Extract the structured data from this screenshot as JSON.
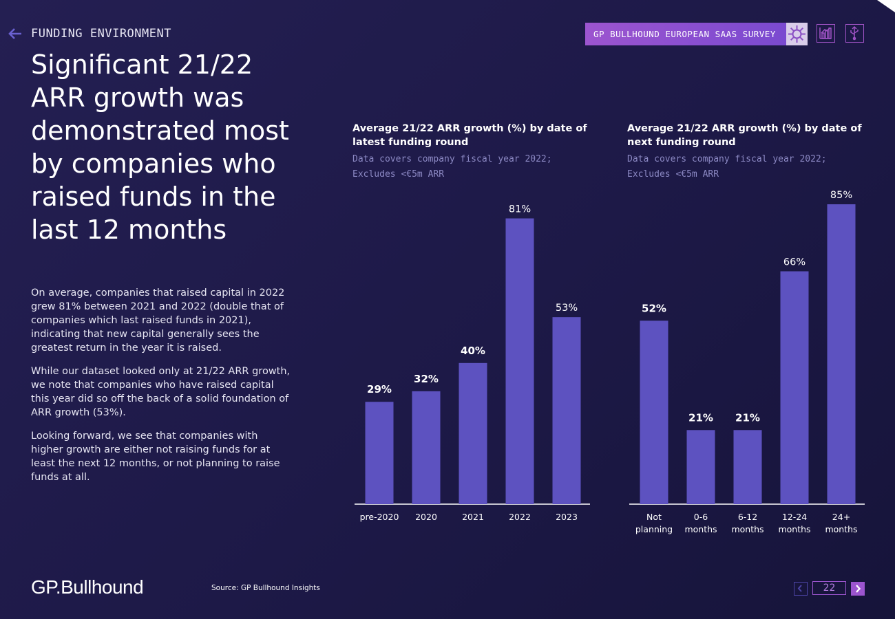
{
  "header": {
    "section": "FUNDING ENVIRONMENT",
    "survey_label": "GP BULLHOUND EUROPEAN SAAS SURVEY",
    "survey_icon": "virus-icon",
    "tool_icons": [
      "bar-chart-icon",
      "usb-icon"
    ]
  },
  "headline": "Significant 21/22 ARR growth was demonstrated most by companies who raised funds in the last 12 months",
  "body": [
    "On average, companies that raised capital in 2022 grew 81% between 2021 and 2022 (double that of companies which last raised funds in 2021), indicating that new capital generally sees the greatest return in the year it is raised.",
    "While our dataset looked only at 21/22 ARR growth, we note that companies who have raised capital this year did so off the back of a solid foundation of ARR growth (53%).",
    "Looking forward, we see that companies with higher growth are either not raising funds for at least the next 12 months, or not planning to raise funds at all."
  ],
  "chart_data": [
    {
      "type": "bar",
      "title": "Average 21/22 ARR growth (%) by date of latest funding round",
      "subtitle": "Data covers company fiscal year 2022; Excludes <€5m ARR",
      "categories": [
        "pre-2020",
        "2020",
        "2021",
        "2022",
        "2023"
      ],
      "values": [
        29,
        32,
        40,
        81,
        53
      ],
      "labels": [
        "29%",
        "32%",
        "40%",
        "81%",
        "53%"
      ],
      "bold_labels": [
        true,
        true,
        true,
        false,
        false
      ],
      "unit": "%",
      "ylim": [
        0,
        85
      ],
      "grid": false,
      "bar_color": "#5d52c0"
    },
    {
      "type": "bar",
      "title": "Average 21/22 ARR growth (%) by date of next funding round",
      "subtitle": "Data covers company fiscal year 2022; Excludes <€5m ARR",
      "categories": [
        "Not planning",
        "0-6 months",
        "6-12 months",
        "12-24 months",
        "24+ months"
      ],
      "values": [
        52,
        21,
        21,
        66,
        85
      ],
      "labels": [
        "52%",
        "21%",
        "21%",
        "66%",
        "85%"
      ],
      "bold_labels": [
        true,
        true,
        true,
        false,
        false
      ],
      "unit": "%",
      "ylim": [
        0,
        85
      ],
      "grid": false,
      "bar_color": "#5d52c0"
    }
  ],
  "footer": {
    "logo": "GP.Bullhound",
    "source": "Source: GP Bullhound Insights",
    "page": "22"
  }
}
